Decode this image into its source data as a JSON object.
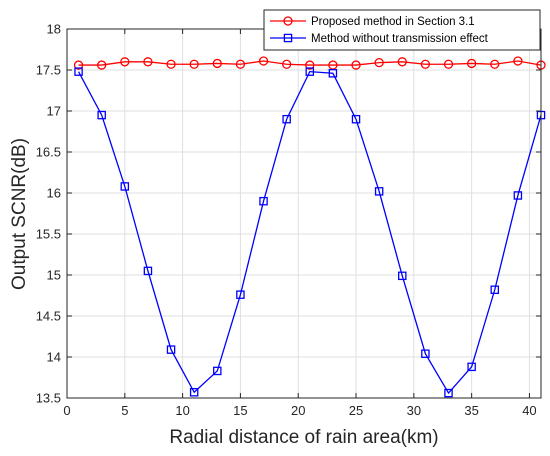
{
  "chart_data": {
    "type": "line",
    "title": "",
    "xlabel": "Radial distance of rain area(km)",
    "ylabel": "Output SCNR(dB)",
    "xlim": [
      0,
      41
    ],
    "ylim": [
      13.5,
      18
    ],
    "xticks": [
      0,
      5,
      10,
      15,
      20,
      25,
      30,
      35,
      40
    ],
    "xtick_labels": [
      "0",
      "5",
      "10",
      "15",
      "20",
      "25",
      "30",
      "35",
      "40"
    ],
    "yticks": [
      13.5,
      14,
      14.5,
      15,
      15.5,
      16,
      16.5,
      17,
      17.5,
      18
    ],
    "ytick_labels": [
      "13.5",
      "14",
      "14.5",
      "15",
      "15.5",
      "16",
      "16.5",
      "17",
      "17.5",
      "18"
    ],
    "grid": true,
    "legend_position": "top-right",
    "x": [
      1,
      3,
      5,
      7,
      9,
      11,
      13,
      15,
      17,
      19,
      21,
      23,
      25,
      27,
      29,
      31,
      33,
      35,
      37,
      39,
      41
    ],
    "series": [
      {
        "name": "Proposed method in Section 3.1",
        "color": "#ff0000",
        "marker": "circle",
        "values": [
          17.56,
          17.56,
          17.6,
          17.6,
          17.57,
          17.57,
          17.58,
          17.57,
          17.61,
          17.57,
          17.56,
          17.56,
          17.56,
          17.59,
          17.6,
          17.57,
          17.57,
          17.58,
          17.57,
          17.61,
          17.56
        ]
      },
      {
        "name": "Method without transmission effect",
        "color": "#0000ff",
        "marker": "square",
        "values": [
          17.48,
          16.95,
          16.08,
          15.05,
          14.09,
          13.57,
          13.83,
          14.76,
          15.9,
          16.9,
          17.48,
          17.46,
          16.9,
          16.02,
          14.99,
          14.04,
          13.56,
          13.88,
          14.82,
          15.97,
          16.95
        ]
      }
    ]
  }
}
